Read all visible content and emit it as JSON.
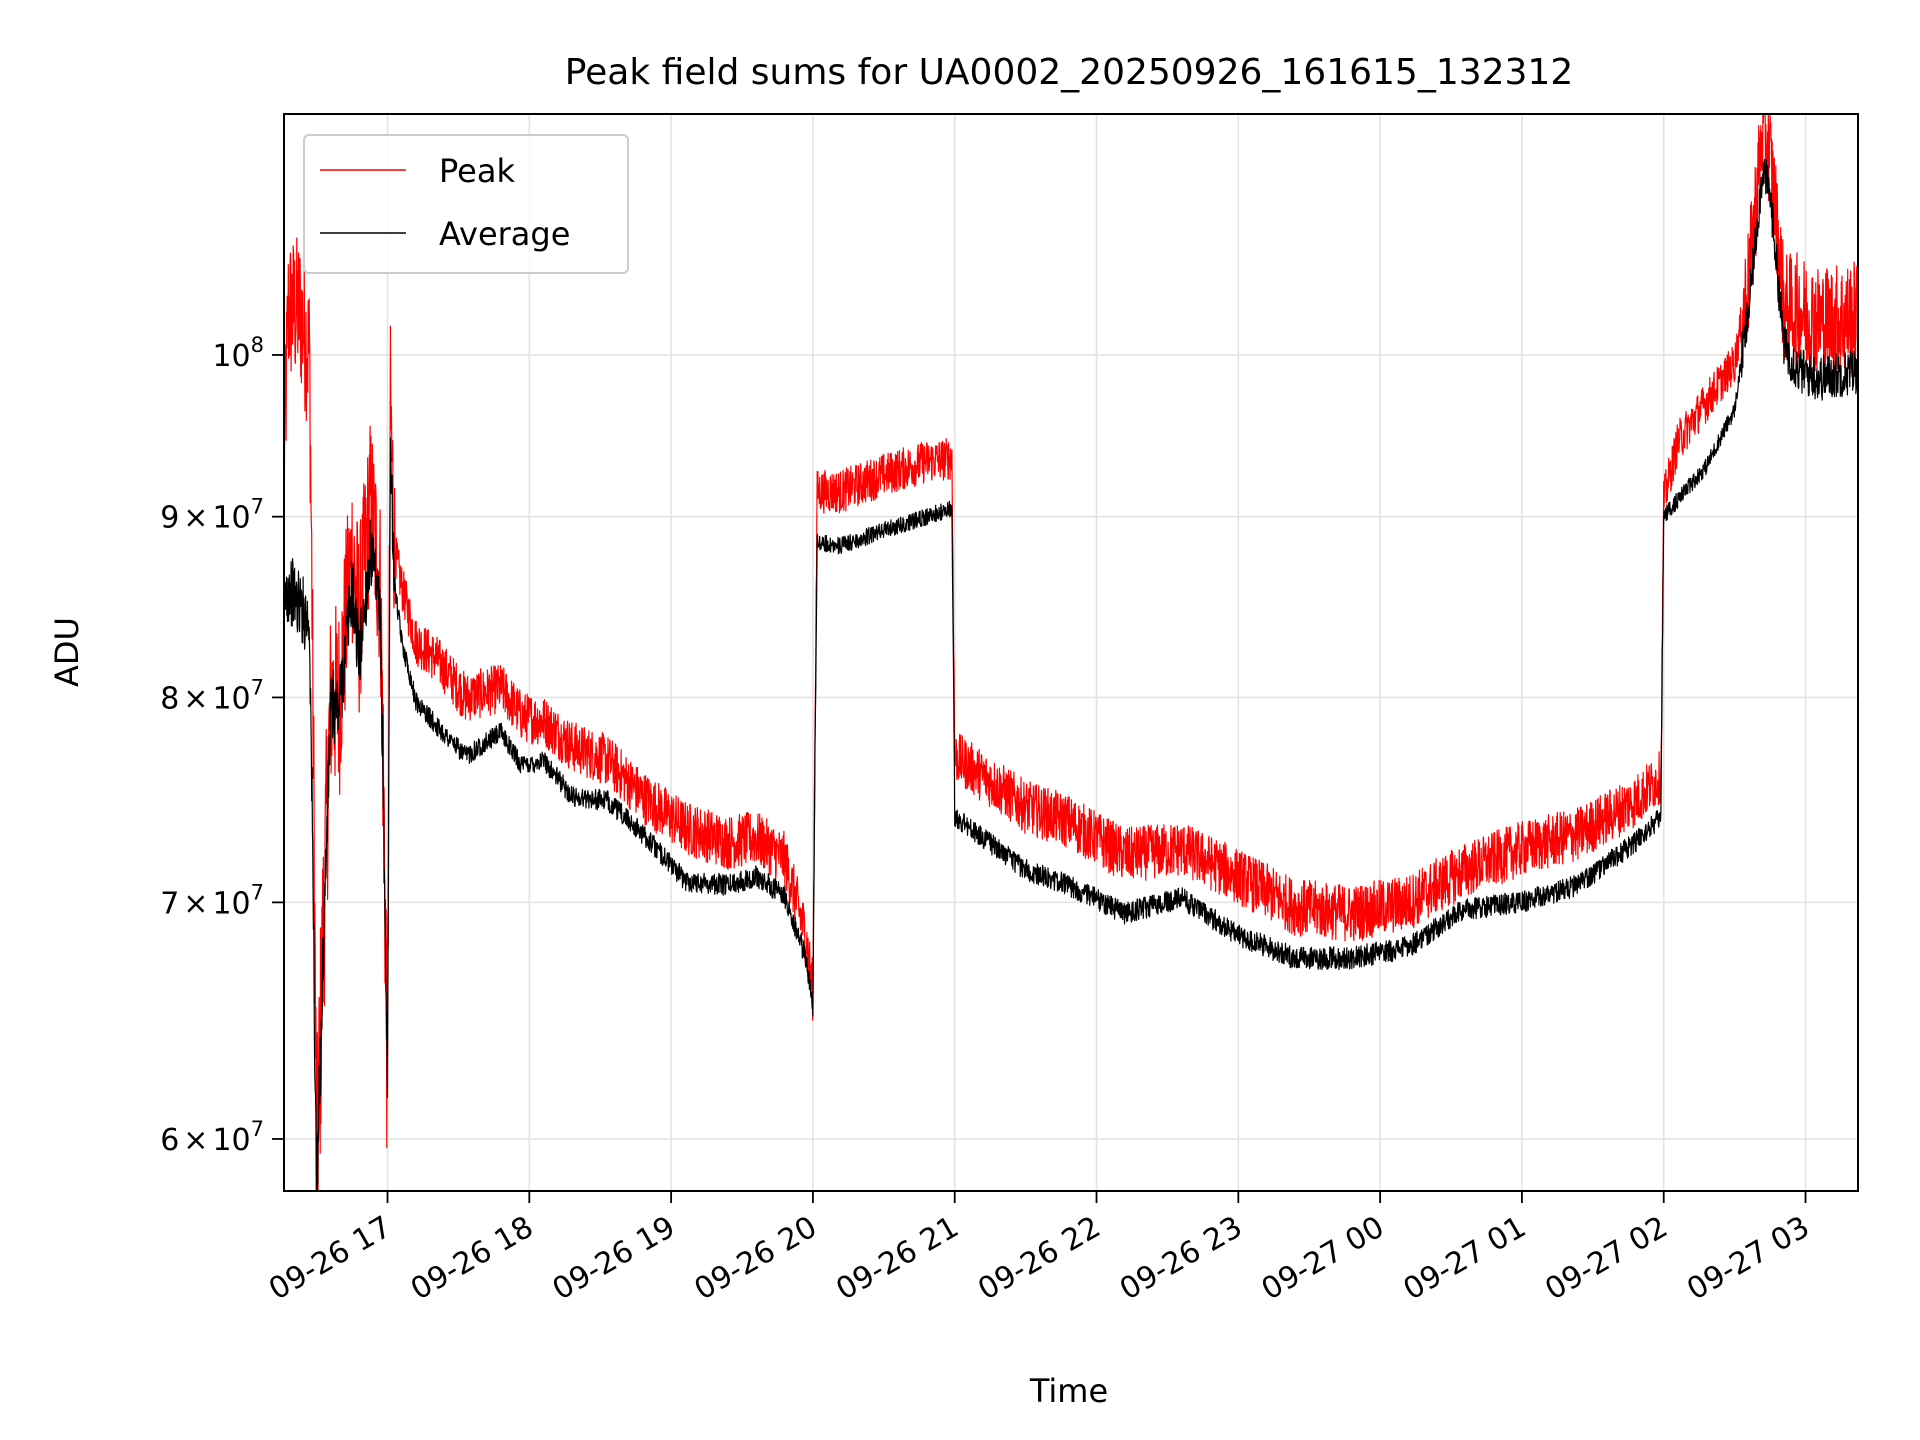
{
  "chart_data": {
    "type": "line",
    "title": "Peak field sums for UA0002_20250926_161615_132312",
    "xlabel": "Time",
    "ylabel": "ADU",
    "yscale": "log",
    "ylim": [
      58000000,
      117000000
    ],
    "xlim": [
      "2025-09-26 16:16",
      "2025-09-27 03:23"
    ],
    "x_unit": "hours since 2025-09-26 16:00",
    "xlim_hours": [
      0.27,
      11.37
    ],
    "grid": true,
    "legend_location": "upper-left",
    "x_tick_hours": [
      1,
      2,
      3,
      4,
      5,
      6,
      7,
      8,
      9,
      10,
      11
    ],
    "x_tick_labels": [
      "09-26 17",
      "09-26 18",
      "09-26 19",
      "09-26 20",
      "09-26 21",
      "09-26 22",
      "09-26 23",
      "09-27 00",
      "09-27 01",
      "09-27 02",
      "09-27 03"
    ],
    "y_tick_values": [
      60000000,
      70000000,
      80000000,
      90000000,
      100000000
    ],
    "y_tick_labels": [
      {
        "mantissa": "6",
        "times": "×",
        "base": "10",
        "exp": "7"
      },
      {
        "mantissa": "7",
        "times": "×",
        "base": "10",
        "exp": "7"
      },
      {
        "mantissa": "8",
        "times": "×",
        "base": "10",
        "exp": "7"
      },
      {
        "mantissa": "9",
        "times": "×",
        "base": "10",
        "exp": "7"
      },
      {
        "mantissa": "",
        "times": "",
        "base": "10",
        "exp": "8"
      }
    ],
    "series": [
      {
        "name": "Peak",
        "color": "#ff0000",
        "noise_amplitude": 1300000,
        "points": [
          [
            0.27,
            93000000
          ],
          [
            0.3,
            103000000
          ],
          [
            0.38,
            103000000
          ],
          [
            0.45,
            100000000
          ],
          [
            0.5,
            58000000
          ],
          [
            0.55,
            69500000
          ],
          [
            0.6,
            80000000
          ],
          [
            0.66,
            80000000
          ],
          [
            0.75,
            88000000
          ],
          [
            0.8,
            84000000
          ],
          [
            0.88,
            91000000
          ],
          [
            0.95,
            86000000
          ],
          [
            1.0,
            62000000
          ],
          [
            1.02,
            97000000
          ],
          [
            1.05,
            88000000
          ],
          [
            1.1,
            86000000
          ],
          [
            1.2,
            83000000
          ],
          [
            1.35,
            82000000
          ],
          [
            1.55,
            80000000
          ],
          [
            1.8,
            80500000
          ],
          [
            1.95,
            79000000
          ],
          [
            2.1,
            78800000
          ],
          [
            2.3,
            77500000
          ],
          [
            2.55,
            76800000
          ],
          [
            2.8,
            75000000
          ],
          [
            3.1,
            73500000
          ],
          [
            3.4,
            72800000
          ],
          [
            3.6,
            73000000
          ],
          [
            3.8,
            72000000
          ],
          [
            3.95,
            68500000
          ],
          [
            4.0,
            66000000
          ],
          [
            4.03,
            91500000
          ],
          [
            4.2,
            91500000
          ],
          [
            4.5,
            92500000
          ],
          [
            4.8,
            93300000
          ],
          [
            4.98,
            93500000
          ],
          [
            5.0,
            77000000
          ],
          [
            5.2,
            76000000
          ],
          [
            5.5,
            74500000
          ],
          [
            5.8,
            73800000
          ],
          [
            6.2,
            72200000
          ],
          [
            6.6,
            72500000
          ],
          [
            7.0,
            71200000
          ],
          [
            7.4,
            69800000
          ],
          [
            7.8,
            69500000
          ],
          [
            8.2,
            70000000
          ],
          [
            8.6,
            71500000
          ],
          [
            9.0,
            72500000
          ],
          [
            9.4,
            73200000
          ],
          [
            9.8,
            74800000
          ],
          [
            9.98,
            76000000
          ],
          [
            10.0,
            91000000
          ],
          [
            10.1,
            94500000
          ],
          [
            10.3,
            97000000
          ],
          [
            10.5,
            99500000
          ],
          [
            10.6,
            105000000
          ],
          [
            10.7,
            116000000
          ],
          [
            10.75,
            114000000
          ],
          [
            10.85,
            103000000
          ],
          [
            10.95,
            103000000
          ],
          [
            11.1,
            102200000
          ],
          [
            11.37,
            102500000
          ]
        ]
      },
      {
        "name": "Average",
        "color": "#000000",
        "noise_amplitude": 500000,
        "points": [
          [
            0.27,
            85000000
          ],
          [
            0.3,
            86000000
          ],
          [
            0.38,
            85000000
          ],
          [
            0.45,
            84000000
          ],
          [
            0.5,
            57000000
          ],
          [
            0.55,
            68500000
          ],
          [
            0.6,
            79500000
          ],
          [
            0.66,
            79500000
          ],
          [
            0.75,
            86000000
          ],
          [
            0.8,
            82000000
          ],
          [
            0.88,
            88000000
          ],
          [
            0.95,
            84000000
          ],
          [
            1.0,
            61500000
          ],
          [
            1.02,
            94000000
          ],
          [
            1.05,
            86000000
          ],
          [
            1.1,
            83000000
          ],
          [
            1.2,
            79800000
          ],
          [
            1.35,
            78500000
          ],
          [
            1.55,
            77000000
          ],
          [
            1.8,
            78200000
          ],
          [
            1.95,
            76500000
          ],
          [
            2.1,
            76800000
          ],
          [
            2.3,
            75000000
          ],
          [
            2.55,
            74800000
          ],
          [
            2.8,
            73200000
          ],
          [
            3.1,
            71000000
          ],
          [
            3.4,
            70800000
          ],
          [
            3.6,
            71200000
          ],
          [
            3.8,
            70300000
          ],
          [
            3.95,
            67500000
          ],
          [
            4.0,
            65500000
          ],
          [
            4.03,
            88500000
          ],
          [
            4.2,
            88300000
          ],
          [
            4.5,
            89200000
          ],
          [
            4.8,
            90000000
          ],
          [
            4.98,
            90500000
          ],
          [
            5.0,
            74000000
          ],
          [
            5.2,
            73000000
          ],
          [
            5.5,
            71500000
          ],
          [
            5.8,
            70800000
          ],
          [
            6.2,
            69500000
          ],
          [
            6.6,
            70200000
          ],
          [
            7.0,
            68500000
          ],
          [
            7.4,
            67500000
          ],
          [
            7.8,
            67500000
          ],
          [
            8.2,
            68000000
          ],
          [
            8.6,
            69700000
          ],
          [
            9.0,
            70000000
          ],
          [
            9.4,
            70800000
          ],
          [
            9.8,
            72800000
          ],
          [
            9.98,
            74000000
          ],
          [
            10.0,
            90000000
          ],
          [
            10.1,
            91000000
          ],
          [
            10.3,
            93000000
          ],
          [
            10.5,
            96500000
          ],
          [
            10.6,
            103000000
          ],
          [
            10.7,
            113000000
          ],
          [
            10.75,
            111000000
          ],
          [
            10.85,
            100500000
          ],
          [
            10.95,
            99000000
          ],
          [
            11.1,
            98500000
          ],
          [
            11.37,
            99000000
          ]
        ]
      }
    ]
  }
}
